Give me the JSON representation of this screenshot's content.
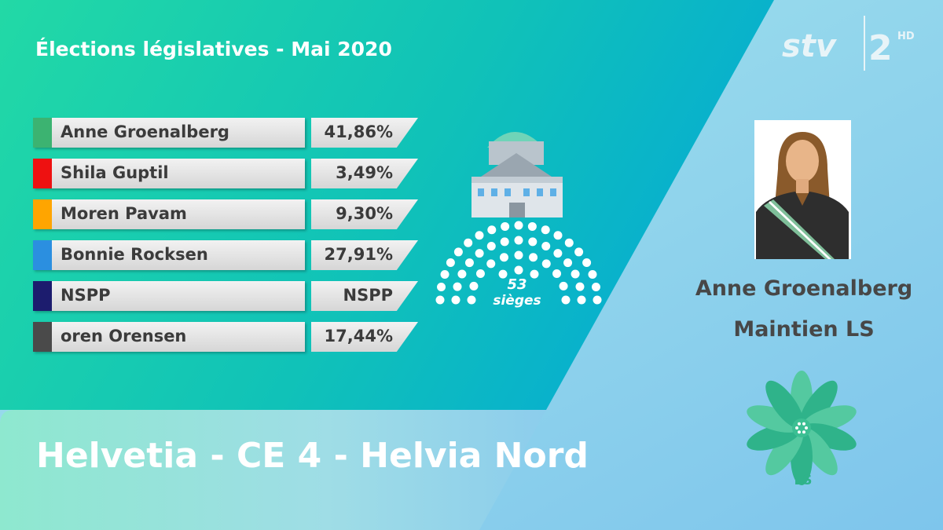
{
  "header": {
    "title": "Élections législatives - Mai 2020"
  },
  "logo": {
    "brand": "stv",
    "channel": "2",
    "badge": "HD"
  },
  "rows": [
    {
      "name": "Anne Groenalberg",
      "result": "41,86%",
      "color": "#3cb371"
    },
    {
      "name": "Shila Guptil",
      "result": "3,49%",
      "color": "#ee1111"
    },
    {
      "name": "Moren Pavam",
      "result": "9,30%",
      "color": "#ffa500"
    },
    {
      "name": "Bonnie Rocksen",
      "result": "27,91%",
      "color": "#2b8fe0"
    },
    {
      "name": "NSPP",
      "result": "NSPP",
      "color": "#1c1c6e"
    },
    {
      "name": "oren Orensen",
      "result": "17,44%",
      "color": "#4a4a4a"
    }
  ],
  "seats": {
    "count": "53",
    "label": "sièges"
  },
  "winner": {
    "name": "Anne Groenalberg",
    "status": "Maintien LS"
  },
  "party_logo": {
    "label": "LS"
  },
  "footer": {
    "constituency": "Helvetia - CE 4 - Helvia Nord"
  }
}
